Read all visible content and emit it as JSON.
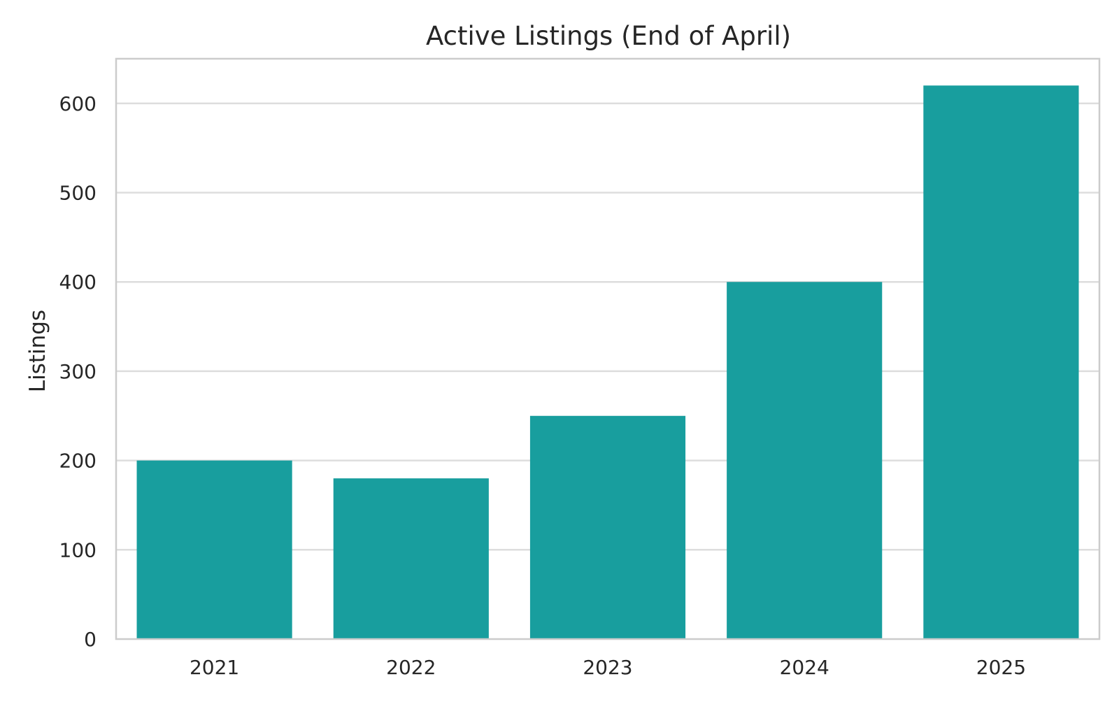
{
  "chart_data": {
    "type": "bar",
    "title": "Active Listings (End of April)",
    "xlabel": "",
    "ylabel": "Listings",
    "categories": [
      "2021",
      "2022",
      "2023",
      "2024",
      "2025"
    ],
    "values": [
      200,
      180,
      250,
      400,
      620
    ],
    "ylim": [
      0,
      650
    ],
    "yticks": [
      0,
      100,
      200,
      300,
      400,
      500,
      600
    ],
    "grid": true,
    "legend": "none",
    "bar_color": "#189e9e",
    "grid_color": "#dddddd",
    "frame_color": "#cccccc"
  }
}
